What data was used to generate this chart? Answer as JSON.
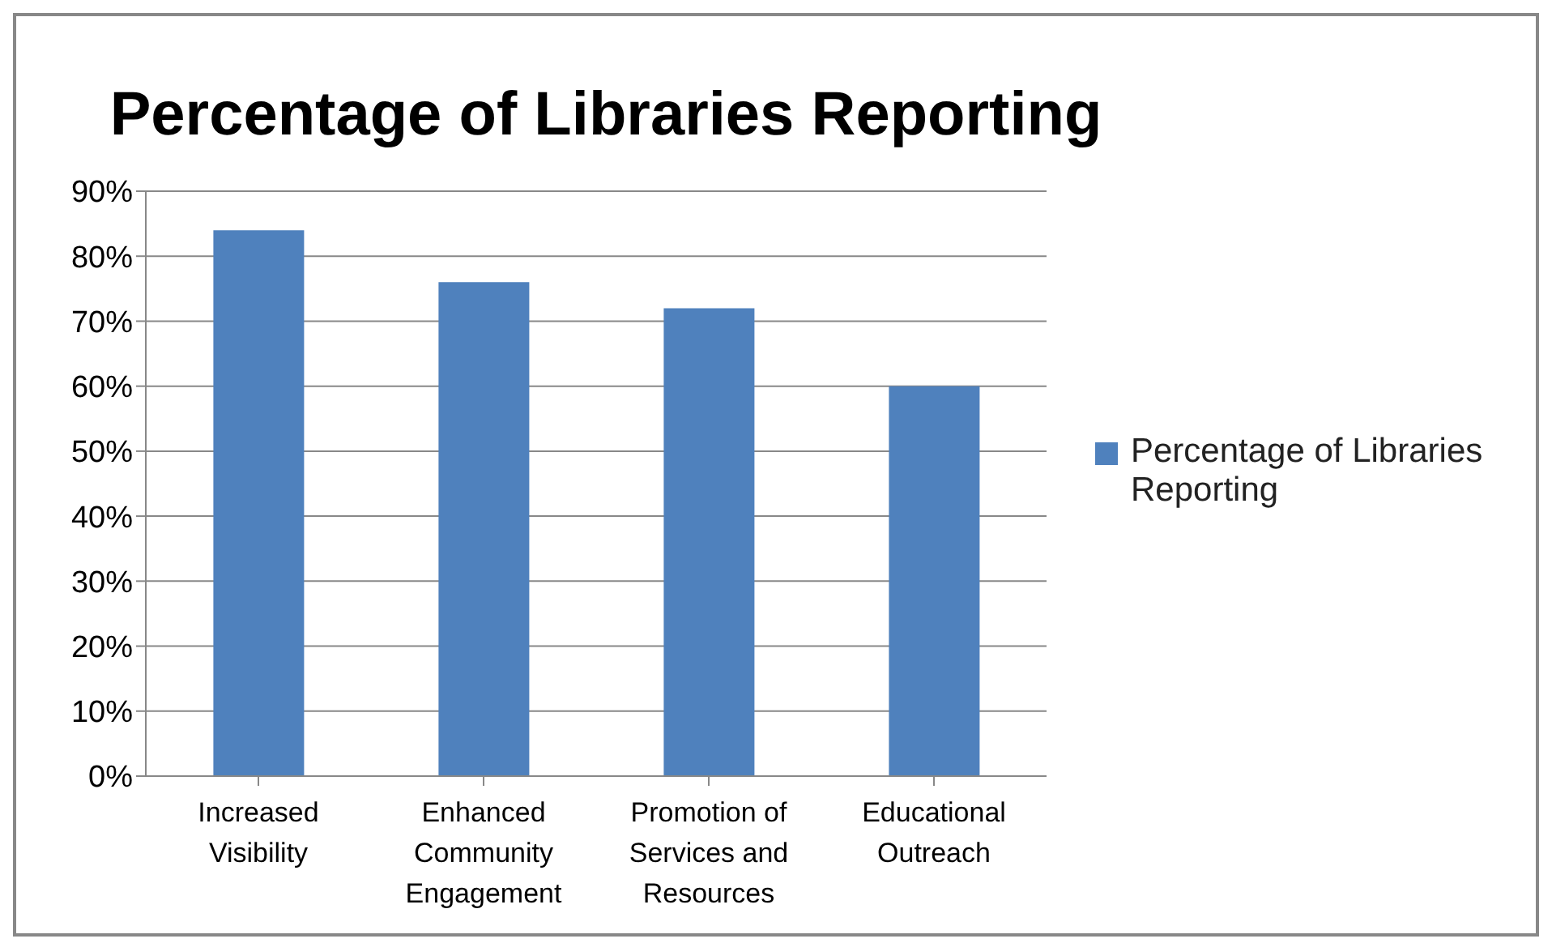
{
  "chart_data": {
    "type": "bar",
    "title": "Percentage of Libraries Reporting",
    "categories": [
      "Increased Visibility",
      "Enhanced Community Engagement",
      "Promotion of Services and Resources",
      "Educational Outreach"
    ],
    "series": [
      {
        "name": "Percentage of Libraries Reporting",
        "color": "#4f81bd",
        "values": [
          84,
          76,
          72,
          60
        ]
      }
    ],
    "ylim": [
      0,
      90
    ],
    "yticks": [
      {
        "value": 0,
        "label": "0%"
      },
      {
        "value": 10,
        "label": "10%"
      },
      {
        "value": 20,
        "label": "20%"
      },
      {
        "value": 30,
        "label": "30%"
      },
      {
        "value": 40,
        "label": "40%"
      },
      {
        "value": 50,
        "label": "50%"
      },
      {
        "value": 60,
        "label": "60%"
      },
      {
        "value": 70,
        "label": "70%"
      },
      {
        "value": 80,
        "label": "80%"
      },
      {
        "value": 90,
        "label": "90%"
      }
    ],
    "grid": "y",
    "legend": "right"
  }
}
